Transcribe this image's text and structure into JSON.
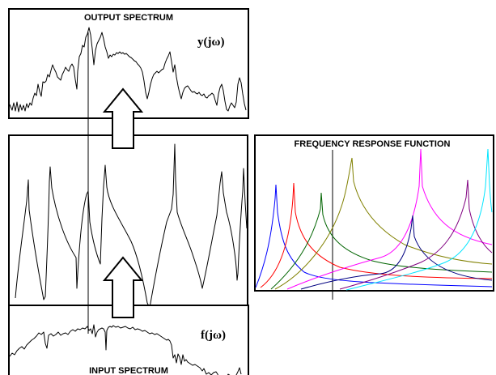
{
  "output_panel": {
    "title": "OUTPUT SPECTRUM",
    "label": "y(jω)"
  },
  "input_panel": {
    "title": "INPUT SPECTRUM",
    "label": "f(jω)"
  },
  "frf_panel": {
    "title": "FREQUENCY RESPONSE FUNCTION",
    "mode_colors": [
      "#0000ff",
      "#ff0000",
      "#006400",
      "#808000",
      "#ff00ff",
      "#000080",
      "#800080",
      "#00e5ff"
    ]
  }
}
